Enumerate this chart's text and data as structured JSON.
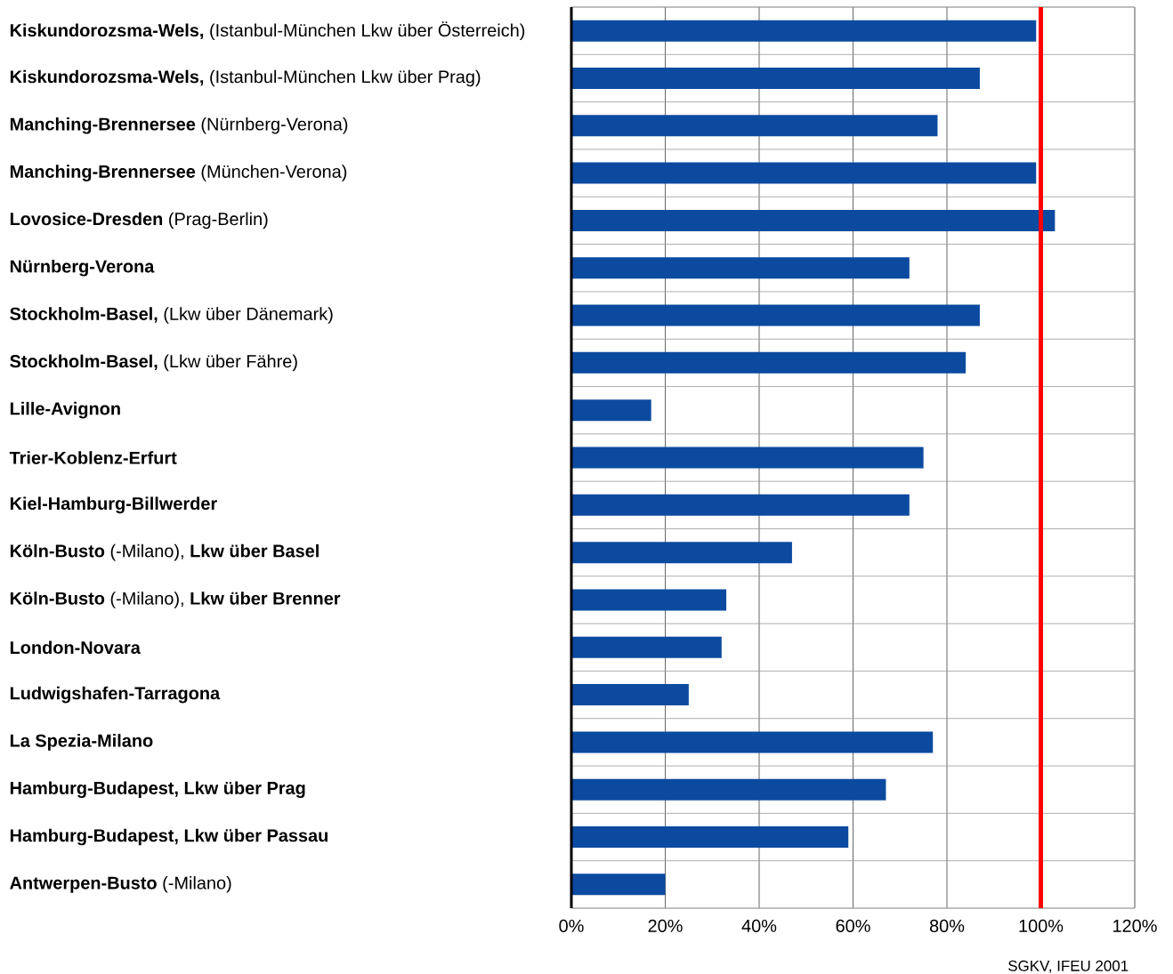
{
  "chart_data": {
    "type": "bar",
    "orientation": "horizontal",
    "categories": [
      "**Kiskundorozsma-Wels,** (Istanbul-München Lkw über Österreich)",
      "**Kiskundorozsma-Wels,** (Istanbul-München Lkw über Prag)",
      "**Manching-Brennersee** (Nürnberg-Verona)",
      "**Manching-Brennersee** (München-Verona)",
      "**Lovosice-Dresden** (Prag-Berlin)",
      "**Nürnberg-Verona**",
      "**Stockholm-Basel,** (Lkw über Dänemark)",
      "**Stockholm-Basel,** (Lkw über Fähre)",
      "**Lille-Avignon**",
      "**Trier-Koblenz-Erfurt**",
      "**Kiel-Hamburg-Billwerder**",
      "**Köln-Busto** (-Milano), **Lkw über Basel**",
      "**Köln-Busto** (-Milano), **Lkw über Brenner**",
      "**London-Novara**",
      "**Ludwigshafen-Tarragona**",
      "**La Spezia-Milano**",
      "**Hamburg-Budapest, Lkw über Prag**",
      "**Hamburg-Budapest, Lkw über Passau**",
      "**Antwerpen-Busto** (-Milano)"
    ],
    "values": [
      99,
      87,
      78,
      99,
      103,
      72,
      87,
      84,
      17,
      75,
      72,
      47,
      33,
      32,
      25,
      77,
      67,
      59,
      20
    ],
    "color": "#0c4aa0",
    "xlim": [
      0,
      120
    ],
    "xticks": [
      {
        "value": 0,
        "label": "0%"
      },
      {
        "value": 20,
        "label": "20%"
      },
      {
        "value": 40,
        "label": "40%"
      },
      {
        "value": 60,
        "label": "60%"
      },
      {
        "value": 80,
        "label": "80%"
      },
      {
        "value": 100,
        "label": "100%"
      },
      {
        "value": 120,
        "label": "120%"
      }
    ],
    "grid": "x",
    "ref_lines": [
      {
        "axis": "x",
        "value": 100,
        "color": "#ff0000"
      }
    ],
    "annotations": [
      "SGKV, IFEU 2001"
    ]
  }
}
